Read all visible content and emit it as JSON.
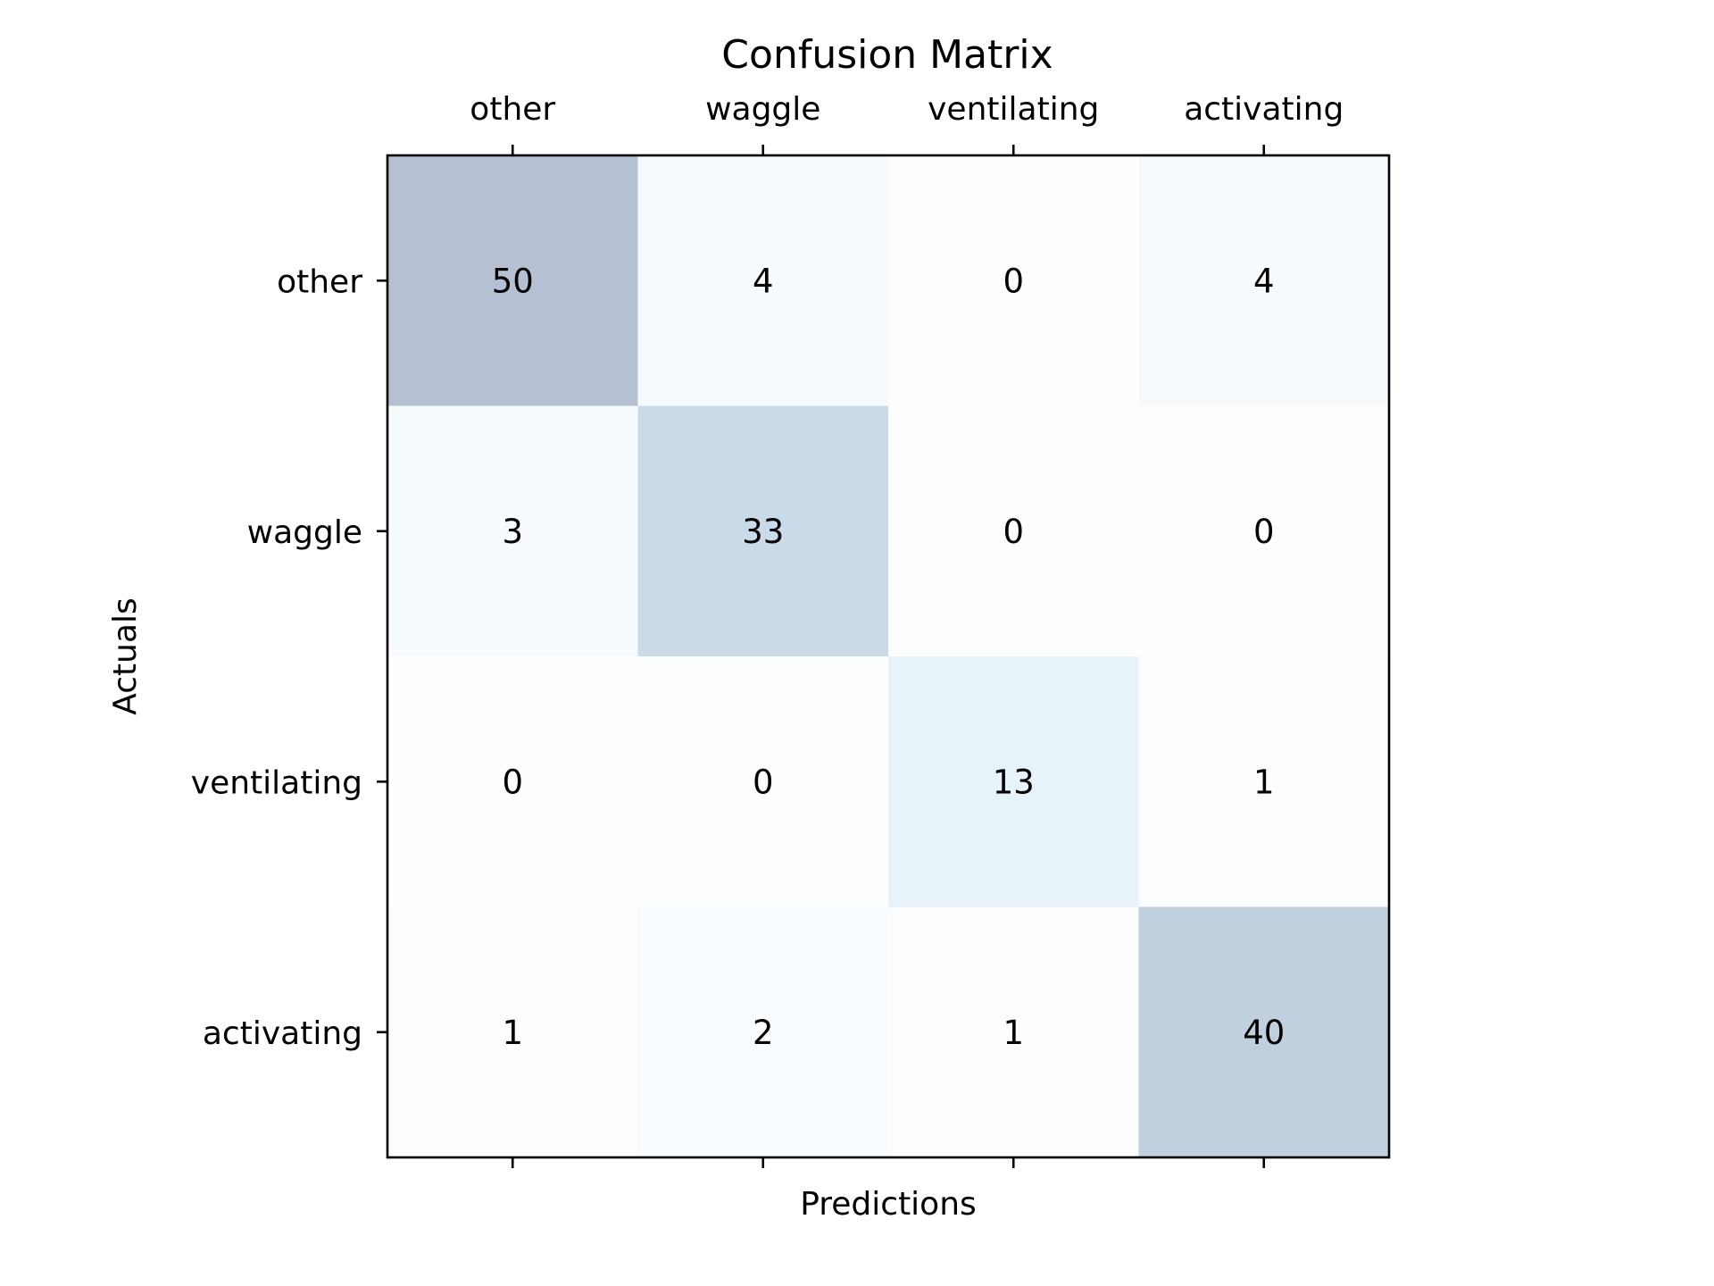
{
  "chart_data": {
    "type": "heatmap",
    "title": "Confusion Matrix",
    "xlabel": "Predictions",
    "ylabel": "Actuals",
    "x_categories": [
      "other",
      "waggle",
      "ventilating",
      "activating"
    ],
    "y_categories": [
      "other",
      "waggle",
      "ventilating",
      "activating"
    ],
    "x_tick_position": "top",
    "values": [
      [
        50,
        4,
        0,
        4
      ],
      [
        3,
        33,
        0,
        0
      ],
      [
        0,
        0,
        13,
        1
      ],
      [
        1,
        2,
        1,
        40
      ]
    ],
    "colormap": "Blues",
    "alpha": 0.3,
    "grid": false,
    "colors": {
      "low": "#f7fbff",
      "mid": "#6baed6",
      "high": "#08306b"
    }
  }
}
